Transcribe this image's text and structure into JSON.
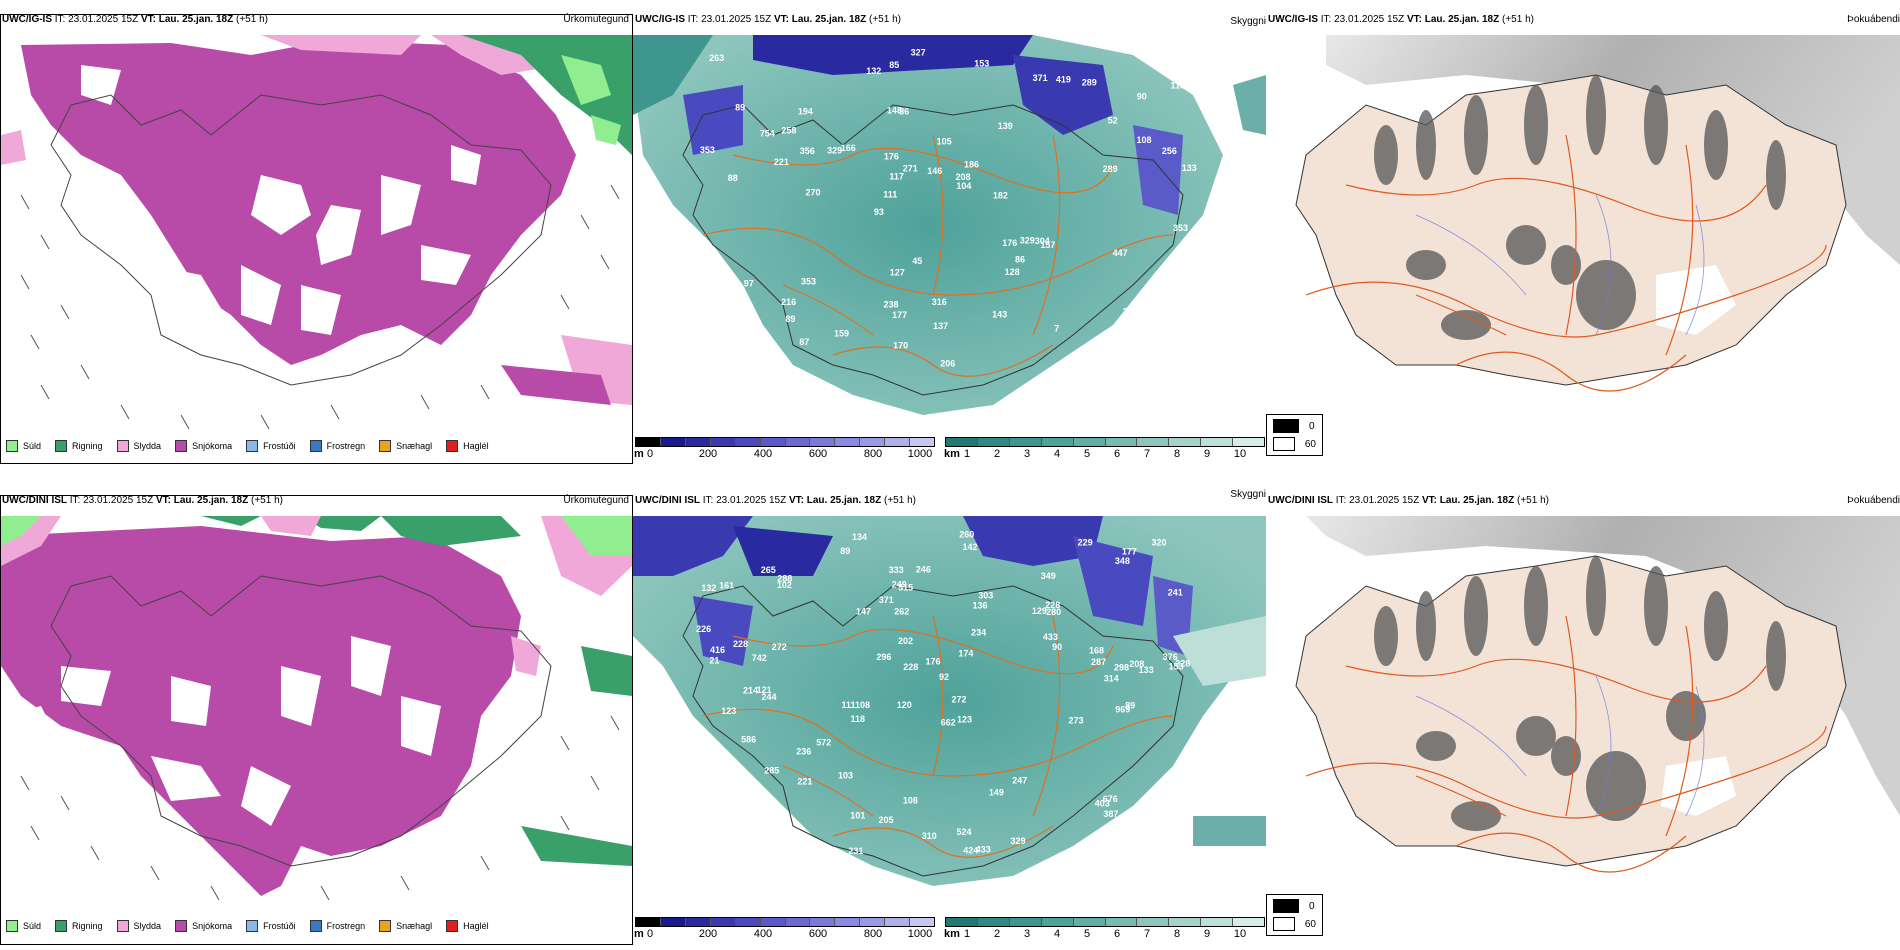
{
  "rows": [
    {
      "model": "UWC/IG-IS",
      "init": "IT: 23.01.2025 15Z",
      "vt_label": "VT:",
      "vt_value": "Lau. 25.jan. 18Z",
      "lead": "(+51 h)",
      "panels": {
        "precip": "Úrkomutegund",
        "visibility": "Skyggni",
        "cloud": "Þokuábendi"
      }
    },
    {
      "model": "UWC/DINI ISL",
      "init": "IT: 23.01.2025 15Z",
      "vt_label": "VT:",
      "vt_value": "Lau. 25.jan. 18Z",
      "lead": "(+51 h)",
      "panels": {
        "precip": "Úrkomutegund",
        "visibility": "Skyggni",
        "cloud": "Þokuábendi"
      }
    }
  ],
  "precip_legend": [
    {
      "label": "Súld",
      "color": "#90ee90"
    },
    {
      "label": "Rigning",
      "color": "#3aa06a"
    },
    {
      "label": "Slydda",
      "color": "#f0a8d8"
    },
    {
      "label": "Snjókoma",
      "color": "#b84aa8"
    },
    {
      "label": "Frostúði",
      "color": "#8ab8f0"
    },
    {
      "label": "Frostregn",
      "color": "#3a78c8"
    },
    {
      "label": "Snæhagl",
      "color": "#f0a020"
    },
    {
      "label": "Haglél",
      "color": "#e02020"
    }
  ],
  "ceiling_bar": {
    "unit": "m",
    "ticks": [
      "0",
      "200",
      "400",
      "600",
      "800",
      "1000"
    ],
    "colors": [
      "#000000",
      "#1a1a8a",
      "#2a2aa0",
      "#3a3ab0",
      "#4a4ac0",
      "#5a5ac8",
      "#6a6ad0",
      "#7a7ad8",
      "#8a8ae0",
      "#9a9ae4",
      "#b0b0ec",
      "#c8c8f4"
    ]
  },
  "vis_bar": {
    "unit": "km",
    "ticks": [
      "1",
      "2",
      "3",
      "4",
      "5",
      "6",
      "7",
      "8",
      "9",
      "10"
    ],
    "colors": [
      "#1e7a72",
      "#2e8a82",
      "#3e968e",
      "#4ea29a",
      "#62aea6",
      "#76bab2",
      "#8ec6be",
      "#a6d2ca",
      "#bedfd8",
      "#d6ece8"
    ]
  },
  "cloud_legend": [
    {
      "label": "0",
      "color": "#000000"
    },
    {
      "label": "60",
      "color": "#ffffff"
    }
  ],
  "ceiling_labels_top": [
    "95",
    "88",
    "90",
    "93",
    "139",
    "109",
    "148",
    "105",
    "97",
    "166",
    "96",
    "89",
    "86",
    "186",
    "157",
    "89",
    "85",
    "133",
    "176",
    "108",
    "111",
    "238",
    "117",
    "194",
    "371",
    "353",
    "302",
    "230",
    "304",
    "206",
    "329",
    "221",
    "128",
    "87",
    "256",
    "208",
    "276",
    "177",
    "104",
    "147",
    "52",
    "116",
    "86",
    "143",
    "216",
    "184",
    "176",
    "316",
    "289",
    "327",
    "270",
    "353",
    "258",
    "419",
    "127",
    "153",
    "132",
    "271",
    "155",
    "127",
    "159",
    "329",
    "356",
    "214",
    "263",
    "754",
    "353",
    "176",
    "137",
    "146",
    "202",
    "182",
    "447",
    "170",
    "289",
    "45",
    "7"
  ],
  "ceiling_labels_bot": [
    "134",
    "349",
    "153",
    "120",
    "123",
    "121",
    "161",
    "129",
    "123",
    "136",
    "92",
    "214",
    "89",
    "111108",
    "424",
    "433",
    "108",
    "229",
    "90",
    "236",
    "742",
    "214",
    "228",
    "208",
    "225",
    "228",
    "228",
    "287",
    "676",
    "333",
    "403",
    "303",
    "285",
    "296",
    "247",
    "291",
    "168",
    "205",
    "320",
    "246",
    "341",
    "231",
    "329",
    "265",
    "310",
    "280",
    "387",
    "228",
    "226",
    "272",
    "249",
    "314",
    "174",
    "348",
    "142",
    "221",
    "202",
    "176",
    "177",
    "262",
    "340",
    "969",
    "288",
    "103",
    "662",
    "416",
    "298",
    "244",
    "147",
    "241",
    "586",
    "333",
    "376",
    "433",
    "234",
    "272",
    "101",
    "102",
    "133",
    "572",
    "260",
    "524",
    "65",
    "132",
    "371",
    "515",
    "328",
    "273",
    "118",
    "149",
    "21",
    "89"
  ],
  "colors": {
    "sea": "#ffffff",
    "snow": "#b84aa8",
    "sleet": "#f0a8d8",
    "rain": "#3aa06a",
    "drizzle": "#90ee90",
    "land": "#f3e2d6",
    "roads": "#e05a20",
    "ceiling": "#3a3ab8",
    "vis": "#3e968e"
  }
}
